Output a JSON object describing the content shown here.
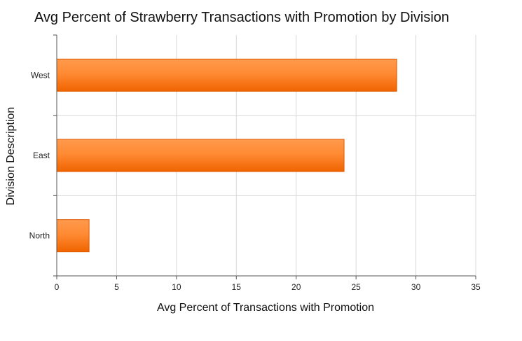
{
  "chart_data": {
    "type": "bar",
    "orientation": "horizontal",
    "title": "Avg Percent of Strawberry Transactions with Promotion by Division",
    "xlabel": "Avg Percent of Transactions with Promotion",
    "ylabel": "Division Description",
    "categories": [
      "West",
      "East",
      "North"
    ],
    "values": [
      28.4,
      24.0,
      2.7
    ],
    "xlim": [
      0,
      35
    ],
    "xticks": [
      "0",
      "5",
      "10",
      "15",
      "20",
      "25",
      "30",
      "35"
    ],
    "grid": true,
    "legend": "none",
    "bar_color": "#ff7a1f",
    "bar_edge_color": "#e05a00"
  }
}
